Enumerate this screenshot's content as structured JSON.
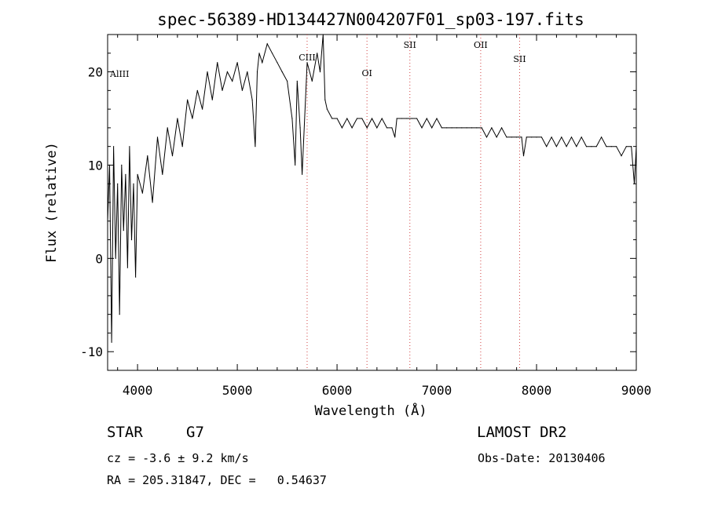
{
  "chart_data": {
    "type": "line",
    "title": "spec-56389-HD134427N004207F01_sp03-197.fits",
    "xlabel": "Wavelength (Å)",
    "ylabel": "Flux (relative)",
    "xlim": [
      3700,
      9000
    ],
    "ylim": [
      -12,
      24
    ],
    "x_ticks": [
      4000,
      5000,
      6000,
      7000,
      8000,
      9000
    ],
    "y_ticks": [
      -10,
      0,
      10,
      20
    ],
    "grid": false,
    "series": [
      {
        "x": [
          3700,
          3720,
          3740,
          3760,
          3780,
          3800,
          3820,
          3840,
          3860,
          3880,
          3900,
          3920,
          3940,
          3960,
          3980,
          4000,
          4050,
          4100,
          4150,
          4200,
          4250,
          4300,
          4350,
          4400,
          4450,
          4500,
          4550,
          4600,
          4650,
          4700,
          4750,
          4800,
          4850,
          4900,
          4950,
          5000,
          5050,
          5100,
          5150,
          5180,
          5200,
          5220,
          5250,
          5300,
          5350,
          5400,
          5450,
          5500,
          5550,
          5580,
          5600,
          5630,
          5650,
          5700,
          5750,
          5800,
          5830,
          5860,
          5880,
          5900,
          5950,
          6000,
          6050,
          6100,
          6150,
          6200,
          6250,
          6300,
          6350,
          6400,
          6450,
          6500,
          6550,
          6580,
          6600,
          6650,
          6700,
          6750,
          6800,
          6850,
          6900,
          6950,
          7000,
          7050,
          7100,
          7150,
          7200,
          7250,
          7300,
          7350,
          7400,
          7450,
          7500,
          7550,
          7600,
          7650,
          7700,
          7750,
          7800,
          7850,
          7870,
          7900,
          7950,
          8000,
          8050,
          8100,
          8150,
          8200,
          8250,
          8300,
          8350,
          8400,
          8450,
          8500,
          8550,
          8600,
          8650,
          8700,
          8750,
          8800,
          8850,
          8900,
          8950,
          8980,
          9000
        ],
        "y": [
          4,
          10,
          -9,
          12,
          0,
          8,
          -6,
          10,
          3,
          9,
          -1,
          12,
          2,
          8,
          -2,
          9,
          7,
          11,
          6,
          13,
          9,
          14,
          11,
          15,
          12,
          17,
          15,
          18,
          16,
          20,
          17,
          21,
          18,
          20,
          19,
          21,
          18,
          20,
          17,
          12,
          20,
          22,
          21,
          23,
          22,
          21,
          20,
          19,
          15,
          10,
          19,
          14,
          9,
          21,
          19,
          22,
          20,
          24,
          17,
          16,
          15,
          15,
          14,
          15,
          14,
          15,
          15,
          14,
          15,
          14,
          15,
          14,
          14,
          13,
          15,
          15,
          15,
          15,
          15,
          14,
          15,
          14,
          15,
          14,
          14,
          14,
          14,
          14,
          14,
          14,
          14,
          14,
          13,
          14,
          13,
          14,
          13,
          13,
          13,
          13,
          11,
          13,
          13,
          13,
          13,
          12,
          13,
          12,
          13,
          12,
          13,
          12,
          13,
          12,
          12,
          12,
          13,
          12,
          12,
          12,
          11,
          12,
          12,
          8,
          12
        ]
      }
    ],
    "line_markers": [
      {
        "label": "CIII",
        "wavelength": 5700
      },
      {
        "label": "OI",
        "wavelength": 6300
      },
      {
        "label": "SII",
        "wavelength": 6730
      },
      {
        "label": "OII",
        "wavelength": 7440
      },
      {
        "label": "SII",
        "wavelength": 7830
      }
    ],
    "edge_label": "AlIII",
    "marker_color": "#d04040"
  },
  "info": {
    "object_type": "STAR",
    "subclass": "G7",
    "survey": "LAMOST DR2",
    "redshift_line": "cz = -3.6 ± 9.2 km/s",
    "obs_date": "Obs-Date: 20130406",
    "coords": "RA = 205.31847, DEC =   0.54637"
  }
}
